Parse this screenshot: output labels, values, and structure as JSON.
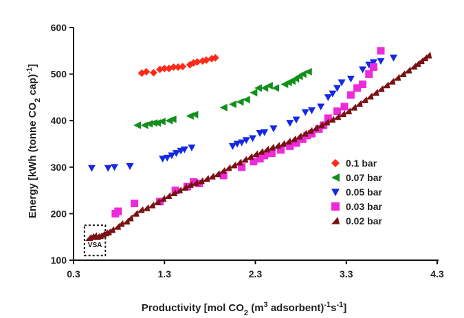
{
  "chart_data": {
    "type": "scatter",
    "title": "",
    "xlabel": "Productivity [mol CO₂ (m³ adsorbent)⁻¹s⁻¹]",
    "ylabel": "Energy [kWh (tonne CO₂ cap)⁻¹]",
    "xlim": [
      0.3,
      4.3
    ],
    "ylim": [
      100,
      600
    ],
    "xticks": [
      "0.3",
      "1.3",
      "2.3",
      "3.3",
      "4.3"
    ],
    "yticks": [
      "100",
      "200",
      "300",
      "400",
      "500",
      "600"
    ],
    "grid": false,
    "legend_position": "right",
    "annotation": "VSA",
    "series": [
      {
        "name": "0.1 bar",
        "color": "#ff2a1a",
        "marker": "diamond",
        "points": [
          [
            1.05,
            502
          ],
          [
            1.1,
            505
          ],
          [
            1.18,
            503
          ],
          [
            1.25,
            510
          ],
          [
            1.3,
            512
          ],
          [
            1.35,
            512
          ],
          [
            1.4,
            515
          ],
          [
            1.45,
            515
          ],
          [
            1.5,
            516
          ],
          [
            1.58,
            520
          ],
          [
            1.62,
            524
          ],
          [
            1.66,
            526
          ],
          [
            1.72,
            528
          ],
          [
            1.76,
            530
          ],
          [
            1.82,
            533
          ],
          [
            1.86,
            535
          ]
        ]
      },
      {
        "name": "0.07 bar",
        "color": "#12901a",
        "marker": "triangle-left",
        "points": [
          [
            1.0,
            390
          ],
          [
            1.08,
            390
          ],
          [
            1.13,
            393
          ],
          [
            1.18,
            395
          ],
          [
            1.22,
            395
          ],
          [
            1.27,
            398
          ],
          [
            1.35,
            400
          ],
          [
            1.39,
            403
          ],
          [
            1.58,
            410
          ],
          [
            1.63,
            413
          ],
          [
            1.95,
            428
          ],
          [
            2.05,
            435
          ],
          [
            2.13,
            440
          ],
          [
            2.2,
            445
          ],
          [
            2.28,
            460
          ],
          [
            2.33,
            470
          ],
          [
            2.4,
            470
          ],
          [
            2.45,
            475
          ],
          [
            2.52,
            470
          ],
          [
            2.62,
            478
          ],
          [
            2.66,
            482
          ],
          [
            2.7,
            485
          ],
          [
            2.74,
            490
          ],
          [
            2.78,
            495
          ],
          [
            2.82,
            500
          ],
          [
            2.88,
            505
          ]
        ]
      },
      {
        "name": "0.05 bar",
        "color": "#1428e6",
        "marker": "triangle-down",
        "points": [
          [
            0.5,
            298
          ],
          [
            0.68,
            298
          ],
          [
            0.75,
            300
          ],
          [
            0.92,
            302
          ],
          [
            1.28,
            318
          ],
          [
            1.33,
            320
          ],
          [
            1.38,
            325
          ],
          [
            1.43,
            330
          ],
          [
            1.48,
            335
          ],
          [
            1.52,
            338
          ],
          [
            1.6,
            342
          ],
          [
            2.05,
            345
          ],
          [
            2.1,
            350
          ],
          [
            2.15,
            353
          ],
          [
            2.2,
            358
          ],
          [
            2.27,
            362
          ],
          [
            2.35,
            373
          ],
          [
            2.4,
            375
          ],
          [
            2.5,
            383
          ],
          [
            2.68,
            395
          ],
          [
            2.75,
            402
          ],
          [
            2.85,
            418
          ],
          [
            2.92,
            422
          ],
          [
            3.02,
            430
          ],
          [
            3.1,
            450
          ],
          [
            3.15,
            458
          ],
          [
            3.2,
            470
          ],
          [
            3.25,
            482
          ],
          [
            3.35,
            490
          ],
          [
            3.48,
            510
          ],
          [
            3.55,
            520
          ],
          [
            3.6,
            525
          ],
          [
            3.68,
            528
          ],
          [
            3.82,
            535
          ]
        ]
      },
      {
        "name": "0.03 bar",
        "color": "#ee2ad9",
        "marker": "square",
        "points": [
          [
            0.76,
            200
          ],
          [
            0.79,
            205
          ],
          [
            0.97,
            222
          ],
          [
            1.25,
            226
          ],
          [
            1.42,
            250
          ],
          [
            1.55,
            258
          ],
          [
            1.62,
            268
          ],
          [
            1.68,
            265
          ],
          [
            1.95,
            282
          ],
          [
            2.15,
            300
          ],
          [
            2.28,
            312
          ],
          [
            2.35,
            318
          ],
          [
            2.4,
            325
          ],
          [
            2.48,
            330
          ],
          [
            2.58,
            337
          ],
          [
            2.68,
            345
          ],
          [
            2.75,
            352
          ],
          [
            2.82,
            360
          ],
          [
            2.87,
            368
          ],
          [
            2.92,
            372
          ],
          [
            3.0,
            382
          ],
          [
            3.05,
            390
          ],
          [
            3.1,
            405
          ],
          [
            3.2,
            420
          ],
          [
            3.28,
            430
          ],
          [
            3.35,
            455
          ],
          [
            3.42,
            470
          ],
          [
            3.48,
            478
          ],
          [
            3.55,
            500
          ],
          [
            3.6,
            515
          ],
          [
            3.68,
            550
          ]
        ]
      },
      {
        "name": "0.02 bar",
        "color": "#7a1214",
        "marker": "triangle-ne",
        "points": [
          [
            0.47,
            148
          ],
          [
            0.5,
            150
          ],
          [
            0.53,
            152
          ],
          [
            0.56,
            150
          ],
          [
            0.59,
            152
          ],
          [
            0.62,
            155
          ],
          [
            0.65,
            158
          ],
          [
            0.68,
            160
          ],
          [
            0.72,
            165
          ],
          [
            0.78,
            172
          ],
          [
            0.82,
            178
          ],
          [
            0.88,
            183
          ],
          [
            0.92,
            190
          ],
          [
            0.98,
            200
          ],
          [
            1.04,
            208
          ],
          [
            1.1,
            212
          ],
          [
            1.16,
            218
          ],
          [
            1.22,
            225
          ],
          [
            1.28,
            232
          ],
          [
            1.34,
            238
          ],
          [
            1.4,
            244
          ],
          [
            1.46,
            250
          ],
          [
            1.52,
            256
          ],
          [
            1.58,
            262
          ],
          [
            1.64,
            266
          ],
          [
            1.7,
            270
          ],
          [
            1.76,
            275
          ],
          [
            1.82,
            280
          ],
          [
            1.88,
            285
          ],
          [
            1.94,
            292
          ],
          [
            2.0,
            298
          ],
          [
            2.06,
            304
          ],
          [
            2.12,
            310
          ],
          [
            2.18,
            316
          ],
          [
            2.24,
            322
          ],
          [
            2.3,
            328
          ],
          [
            2.36,
            333
          ],
          [
            2.42,
            338
          ],
          [
            2.48,
            342
          ],
          [
            2.54,
            346
          ],
          [
            2.6,
            350
          ],
          [
            2.66,
            355
          ],
          [
            2.72,
            360
          ],
          [
            2.78,
            366
          ],
          [
            2.84,
            372
          ],
          [
            2.9,
            378
          ],
          [
            2.96,
            384
          ],
          [
            3.02,
            390
          ],
          [
            3.08,
            396
          ],
          [
            3.14,
            402
          ],
          [
            3.2,
            408
          ],
          [
            3.26,
            414
          ],
          [
            3.32,
            420
          ],
          [
            3.38,
            428
          ],
          [
            3.44,
            436
          ],
          [
            3.5,
            444
          ],
          [
            3.56,
            452
          ],
          [
            3.62,
            460
          ],
          [
            3.68,
            468
          ],
          [
            3.74,
            476
          ],
          [
            3.8,
            484
          ],
          [
            3.86,
            492
          ],
          [
            3.92,
            500
          ],
          [
            3.98,
            508
          ],
          [
            4.04,
            516
          ],
          [
            4.08,
            522
          ],
          [
            4.12,
            528
          ],
          [
            4.16,
            534
          ],
          [
            4.2,
            540
          ]
        ]
      }
    ]
  }
}
